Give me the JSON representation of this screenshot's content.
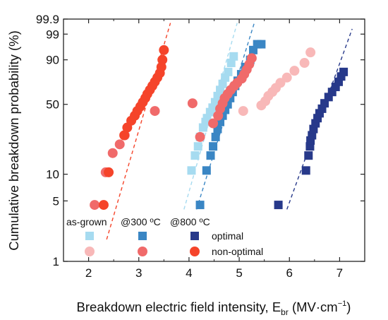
{
  "chart_data": {
    "type": "scatter",
    "title": "",
    "xlabel": {
      "main": "Breakdown electric field intensity, E",
      "sub": "br",
      "unit_open": " (MV·cm",
      "unit_sup": "−1",
      "unit_close": ")"
    },
    "ylabel": "Cumulative breakdown probability (%)",
    "xlim": [
      1.5,
      7.5
    ],
    "x_ticks": [
      "2",
      "3",
      "4",
      "5",
      "6",
      "7"
    ],
    "y_scale": "weibull",
    "y_ticks": [
      "1",
      "5",
      "10",
      "50",
      "90",
      "99",
      "99.9"
    ],
    "legend": {
      "position": "bottom-left",
      "column_headers": [
        "as-grown",
        "@300 ºC",
        "@800 ºC"
      ],
      "row_labels": [
        "optimal",
        "non-optimal"
      ]
    },
    "colors": {
      "opt_asgrown": "#a6dbf0",
      "opt_300": "#3a86c4",
      "opt_800": "#27398a",
      "non_asgrown": "#f8b8b8",
      "non_300": "#f06a6a",
      "non_800": "#f5442a"
    },
    "series": [
      {
        "group": "optimal",
        "treatment": "as-grown",
        "marker": "square",
        "color_key": "opt_asgrown",
        "x": [
          4.05,
          4.12,
          4.18,
          4.22,
          4.28,
          4.33,
          4.36,
          4.42,
          4.47,
          4.52,
          4.57,
          4.62,
          4.67,
          4.72,
          4.78,
          4.84,
          4.89
        ],
        "y": [
          11,
          16,
          20,
          25,
          31,
          35,
          38,
          43,
          47,
          52,
          58,
          64,
          70,
          76,
          81,
          88,
          92
        ]
      },
      {
        "group": "optimal",
        "treatment": "@300 ºC",
        "marker": "square",
        "color_key": "opt_300",
        "x": [
          4.22,
          4.35,
          4.43,
          4.48,
          4.53,
          4.57,
          4.62,
          4.67,
          4.72,
          4.77,
          4.82,
          4.87,
          4.92,
          4.97,
          5.04,
          5.12,
          5.22,
          5.28,
          5.36,
          5.44
        ],
        "y": [
          4.5,
          11,
          16,
          20,
          25,
          30,
          35,
          40,
          45,
          50,
          56,
          62,
          68,
          73,
          79,
          85,
          90,
          95,
          97,
          97
        ]
      },
      {
        "group": "optimal",
        "treatment": "@800 ºC",
        "marker": "square",
        "color_key": "opt_800",
        "x": [
          5.78,
          6.33,
          6.38,
          6.41,
          6.42,
          6.45,
          6.48,
          6.52,
          6.56,
          6.6,
          6.65,
          6.7,
          6.78,
          6.85,
          6.92,
          6.98,
          7.03,
          7.08
        ],
        "y": [
          4.5,
          11,
          16,
          20,
          23,
          26,
          30,
          34,
          38,
          42,
          46,
          51,
          57,
          62,
          67,
          72,
          77,
          81
        ]
      },
      {
        "group": "non-optimal",
        "treatment": "as-grown",
        "marker": "circle",
        "color_key": "non_asgrown",
        "x": [
          5.08,
          5.44,
          5.52,
          5.58,
          5.66,
          5.73,
          5.82,
          5.95,
          6.1,
          6.3,
          6.42
        ],
        "y": [
          44,
          49,
          53,
          58,
          62,
          66,
          71,
          76,
          82,
          88,
          94
        ]
      },
      {
        "group": "non-optimal",
        "treatment": "@300 ºC",
        "marker": "circle",
        "color_key": "non_300",
        "x": [
          2.12,
          2.34,
          2.48,
          2.62,
          2.72,
          3.32,
          4.07,
          4.22,
          4.48,
          4.58,
          4.62,
          4.67,
          4.71,
          4.77,
          4.83,
          4.9,
          4.96,
          5.05,
          5.1,
          5.15,
          5.2,
          5.25
        ],
        "y": [
          4.5,
          10.5,
          17,
          21,
          26,
          44,
          51,
          25,
          34,
          40,
          46,
          51,
          56,
          60,
          64,
          68,
          71,
          75,
          79,
          83,
          87,
          91
        ]
      },
      {
        "group": "non-optimal",
        "treatment": "@800 ºC",
        "marker": "circle",
        "color_key": "non_800",
        "x": [
          2.3,
          2.4,
          2.71,
          2.77,
          2.85,
          2.92,
          2.97,
          3.03,
          3.08,
          3.13,
          3.17,
          3.22,
          3.27,
          3.32,
          3.37,
          3.42,
          3.45,
          3.47,
          3.5
        ],
        "y": [
          4.5,
          10.5,
          26,
          31,
          36,
          40,
          44,
          48,
          52,
          56,
          60,
          64,
          68,
          72,
          76,
          80,
          85,
          90,
          95
        ]
      }
    ],
    "fit_lines": [
      {
        "color_key": "non_800",
        "x": [
          2.36,
          3.63
        ],
        "y": [
          1.8,
          99.8
        ]
      },
      {
        "color_key": "opt_asgrown",
        "x": [
          3.9,
          4.96
        ],
        "y": [
          4.0,
          99.8
        ]
      },
      {
        "color_key": "opt_300",
        "x": [
          4.15,
          5.3
        ],
        "y": [
          4.0,
          99.8
        ]
      },
      {
        "color_key": "opt_800",
        "x": [
          5.95,
          7.25
        ],
        "y": [
          4.0,
          99.5
        ]
      }
    ]
  }
}
